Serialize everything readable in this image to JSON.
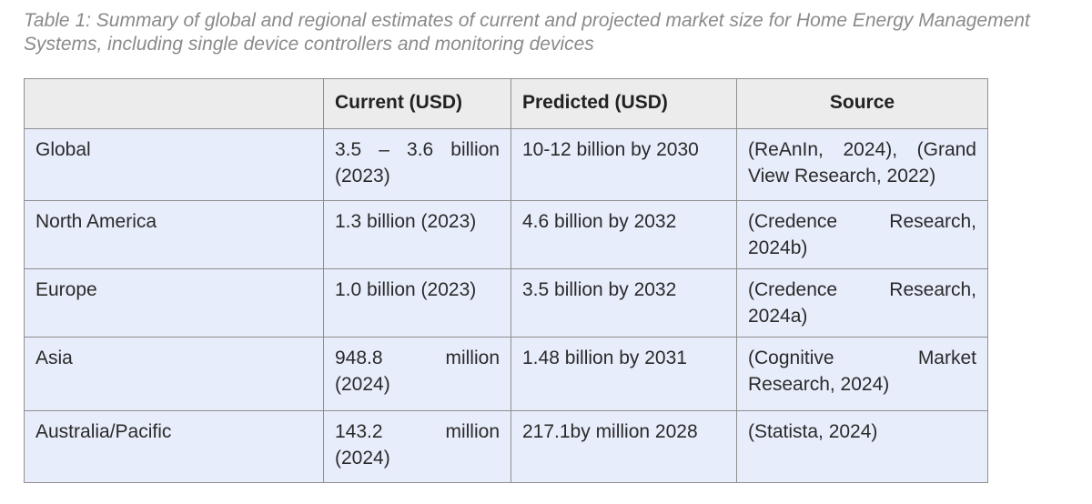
{
  "caption": {
    "line1": "Table 1: Summary of global and regional estimates of current and projected market size for Home Energy Management",
    "line2": "Systems, including single device controllers and monitoring devices"
  },
  "table": {
    "headers": {
      "region": "",
      "current": "Current (USD)",
      "predicted": "Predicted (USD)",
      "source": "Source"
    },
    "rows": [
      {
        "region": "Global",
        "current": [
          "3.5 – 3.6 billion",
          "(2023)"
        ],
        "predicted": "10-12 billion by 2030",
        "source": [
          "(ReAnIn, 2024), (Grand",
          "View Research, 2022)"
        ]
      },
      {
        "region": "North America",
        "current": [
          "1.3 billion (2023)"
        ],
        "predicted": "4.6 billion by 2032",
        "source": [
          "(Credence Research,",
          "2024b)"
        ]
      },
      {
        "region": "Europe",
        "current": [
          "1.0 billion (2023)"
        ],
        "predicted": "3.5 billion by 2032",
        "source": [
          "(Credence Research,",
          "2024a)"
        ]
      },
      {
        "region": "Asia",
        "current": [
          "948.8 million",
          "(2024)"
        ],
        "predicted": "1.48 billion by 2031",
        "source": [
          "(Cognitive Market",
          "Research, 2024)"
        ]
      },
      {
        "region": "Australia/Pacific",
        "current": [
          "143.2 million",
          "(2024)"
        ],
        "predicted": "217.1by million 2028",
        "source": [
          "(Statista, 2024)"
        ]
      }
    ]
  }
}
